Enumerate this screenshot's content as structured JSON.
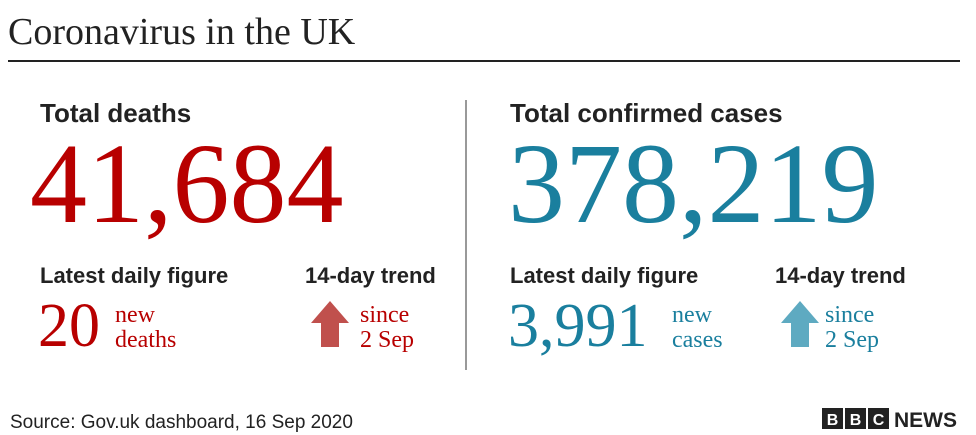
{
  "header": {
    "title": "Coronavirus in the UK"
  },
  "panels": [
    {
      "heading": "Total deaths",
      "total": "41,684",
      "daily_label": "Latest daily figure",
      "daily": "20",
      "daily_unit": [
        "new",
        "deaths"
      ],
      "trend_label": "14-day trend",
      "trend_text": [
        "since",
        "2 Sep"
      ]
    },
    {
      "heading": "Total confirmed cases",
      "total": "378,219",
      "daily_label": "Latest daily figure",
      "daily": "3,991",
      "daily_unit": [
        "new",
        "cases"
      ],
      "trend_label": "14-day trend",
      "trend_text": [
        "since",
        "2 Sep"
      ]
    }
  ],
  "footer": {
    "source": "Source: Gov.uk dashboard, 16 Sep 2020",
    "logo_letters": [
      "B",
      "B",
      "C"
    ],
    "logo_text": "NEWS"
  }
}
